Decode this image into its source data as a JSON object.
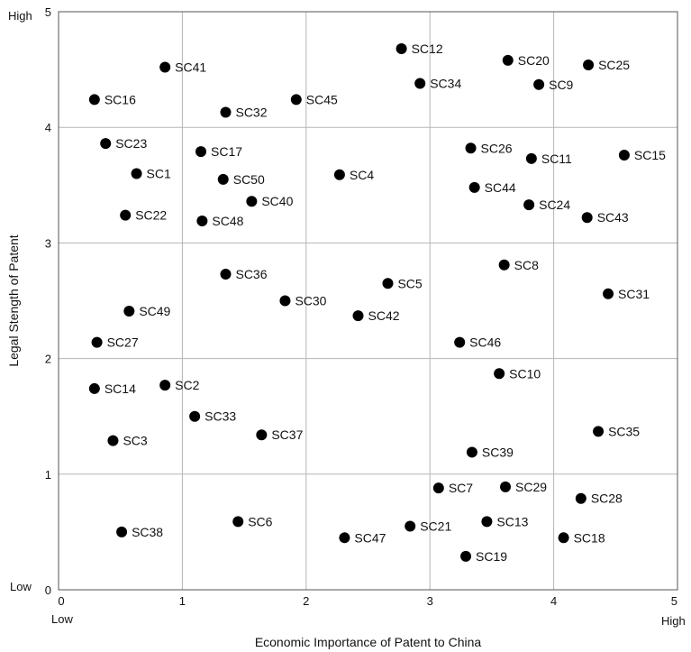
{
  "chart_data": {
    "type": "scatter",
    "title": "",
    "xlabel": "Economic Importance of Patent to China",
    "ylabel": "Legal Stength of Patent",
    "xlim": [
      0,
      5
    ],
    "ylim": [
      0,
      5
    ],
    "xticks": [
      0,
      1,
      2,
      3,
      4,
      5
    ],
    "yticks": [
      0,
      1,
      2,
      3,
      4,
      5
    ],
    "x_low_label": "Low",
    "x_high_label": "High",
    "y_low_label": "Low",
    "y_high_label": "High",
    "grid": true,
    "marker_color": "#000000",
    "points": [
      {
        "label": "SC1",
        "x": 0.63,
        "y": 3.6
      },
      {
        "label": "SC2",
        "x": 0.86,
        "y": 1.77
      },
      {
        "label": "SC3",
        "x": 0.44,
        "y": 1.29
      },
      {
        "label": "SC4",
        "x": 2.27,
        "y": 3.59
      },
      {
        "label": "SC5",
        "x": 2.66,
        "y": 2.65
      },
      {
        "label": "SC6",
        "x": 1.45,
        "y": 0.59
      },
      {
        "label": "SC7",
        "x": 3.07,
        "y": 0.88
      },
      {
        "label": "SC8",
        "x": 3.6,
        "y": 2.81
      },
      {
        "label": "SC9",
        "x": 3.88,
        "y": 4.37
      },
      {
        "label": "SC10",
        "x": 3.56,
        "y": 1.87
      },
      {
        "label": "SC11",
        "x": 3.82,
        "y": 3.73
      },
      {
        "label": "SC12",
        "x": 2.77,
        "y": 4.68
      },
      {
        "label": "SC13",
        "x": 3.46,
        "y": 0.59
      },
      {
        "label": "SC14",
        "x": 0.29,
        "y": 1.74
      },
      {
        "label": "SC15",
        "x": 4.57,
        "y": 3.76
      },
      {
        "label": "SC16",
        "x": 0.29,
        "y": 4.24
      },
      {
        "label": "SC17",
        "x": 1.15,
        "y": 3.79
      },
      {
        "label": "SC18",
        "x": 4.08,
        "y": 0.45
      },
      {
        "label": "SC19",
        "x": 3.29,
        "y": 0.29
      },
      {
        "label": "SC20",
        "x": 3.63,
        "y": 4.58
      },
      {
        "label": "SC21",
        "x": 2.84,
        "y": 0.55
      },
      {
        "label": "SC22",
        "x": 0.54,
        "y": 3.24
      },
      {
        "label": "SC23",
        "x": 0.38,
        "y": 3.86
      },
      {
        "label": "SC24",
        "x": 3.8,
        "y": 3.33
      },
      {
        "label": "SC25",
        "x": 4.28,
        "y": 4.54
      },
      {
        "label": "SC26",
        "x": 3.33,
        "y": 3.82
      },
      {
        "label": "SC27",
        "x": 0.31,
        "y": 2.14
      },
      {
        "label": "SC28",
        "x": 4.22,
        "y": 0.79
      },
      {
        "label": "SC29",
        "x": 3.61,
        "y": 0.89
      },
      {
        "label": "SC30",
        "x": 1.83,
        "y": 2.5
      },
      {
        "label": "SC31",
        "x": 4.44,
        "y": 2.56
      },
      {
        "label": "SC32",
        "x": 1.35,
        "y": 4.13
      },
      {
        "label": "SC33",
        "x": 1.1,
        "y": 1.5
      },
      {
        "label": "SC34",
        "x": 2.92,
        "y": 4.38
      },
      {
        "label": "SC35",
        "x": 4.36,
        "y": 1.37
      },
      {
        "label": "SC36",
        "x": 1.35,
        "y": 2.73
      },
      {
        "label": "SC37",
        "x": 1.64,
        "y": 1.34
      },
      {
        "label": "SC38",
        "x": 0.51,
        "y": 0.5
      },
      {
        "label": "SC39",
        "x": 3.34,
        "y": 1.19
      },
      {
        "label": "SC40",
        "x": 1.56,
        "y": 3.36
      },
      {
        "label": "SC41",
        "x": 0.86,
        "y": 4.52
      },
      {
        "label": "SC42",
        "x": 2.42,
        "y": 2.37
      },
      {
        "label": "SC43",
        "x": 4.27,
        "y": 3.22
      },
      {
        "label": "SC44",
        "x": 3.36,
        "y": 3.48
      },
      {
        "label": "SC45",
        "x": 1.92,
        "y": 4.24
      },
      {
        "label": "SC46",
        "x": 3.24,
        "y": 2.14
      },
      {
        "label": "SC47",
        "x": 2.31,
        "y": 0.45
      },
      {
        "label": "SC48",
        "x": 1.16,
        "y": 3.19
      },
      {
        "label": "SC49",
        "x": 0.57,
        "y": 2.41
      },
      {
        "label": "SC50",
        "x": 1.33,
        "y": 3.55
      }
    ]
  }
}
